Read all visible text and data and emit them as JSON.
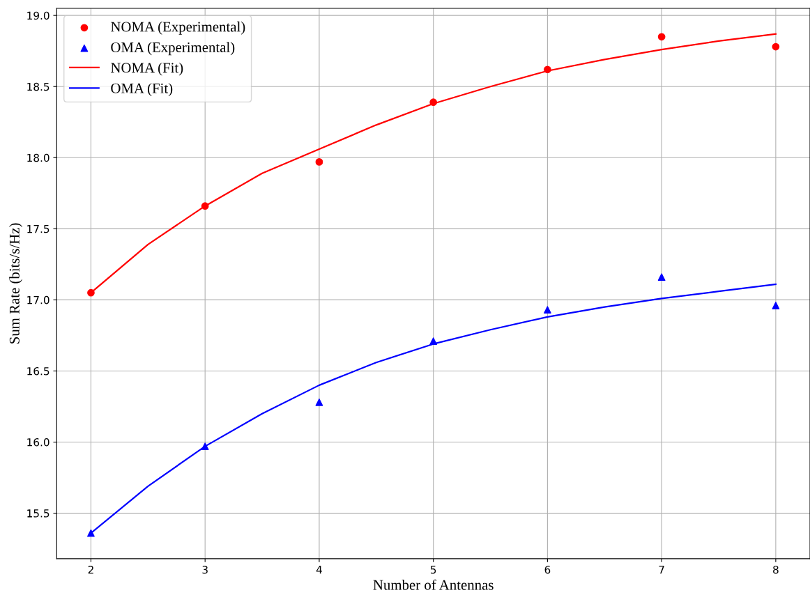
{
  "chart_data": {
    "type": "scatter",
    "xlabel": "Number of Antennas",
    "ylabel": "Sum Rate (bits/s/Hz)",
    "xlim": [
      1.7,
      8.3
    ],
    "xticks": [
      2,
      3,
      4,
      5,
      6,
      7,
      8
    ],
    "ylim": [
      15.18,
      19.05
    ],
    "yticks": [
      15.5,
      {
        "value": 16,
        "label": "16.0"
      },
      16.5,
      {
        "value": 17,
        "label": "17.0"
      },
      17.5,
      {
        "value": 18,
        "label": "18.0"
      },
      18.5,
      {
        "value": 19,
        "label": "19.0"
      }
    ],
    "grid": true,
    "legend": "top left",
    "series": [
      {
        "name": "NOMA (Experimental)",
        "marker": "circle",
        "color": "#ff0000",
        "x": [
          2,
          3,
          4,
          5,
          6,
          7,
          8
        ],
        "values": [
          17.05,
          17.66,
          17.97,
          18.39,
          18.62,
          18.85,
          18.78
        ]
      },
      {
        "name": "OMA (Experimental)",
        "marker": "triangle",
        "color": "#0000ff",
        "x": [
          2,
          3,
          4,
          5,
          6,
          7,
          8
        ],
        "values": [
          15.36,
          15.97,
          16.28,
          16.71,
          16.93,
          17.16,
          16.96
        ]
      },
      {
        "name": "NOMA (Fit)",
        "type": "line",
        "color": "#ff0000",
        "x": [
          2,
          2.5,
          3,
          3.5,
          4,
          4.5,
          5,
          5.5,
          6,
          6.5,
          7,
          7.5,
          8
        ],
        "values": [
          17.05,
          17.39,
          17.66,
          17.89,
          18.06,
          18.23,
          18.38,
          18.5,
          18.61,
          18.69,
          18.76,
          18.82,
          18.87
        ]
      },
      {
        "name": "OMA (Fit)",
        "type": "line",
        "color": "#0000ff",
        "x": [
          2,
          2.5,
          3,
          3.5,
          4,
          4.5,
          5,
          5.5,
          6,
          6.5,
          7,
          7.5,
          8
        ],
        "values": [
          15.36,
          15.69,
          15.97,
          16.2,
          16.4,
          16.56,
          16.69,
          16.79,
          16.88,
          16.95,
          17.01,
          17.06,
          17.11
        ]
      }
    ]
  }
}
